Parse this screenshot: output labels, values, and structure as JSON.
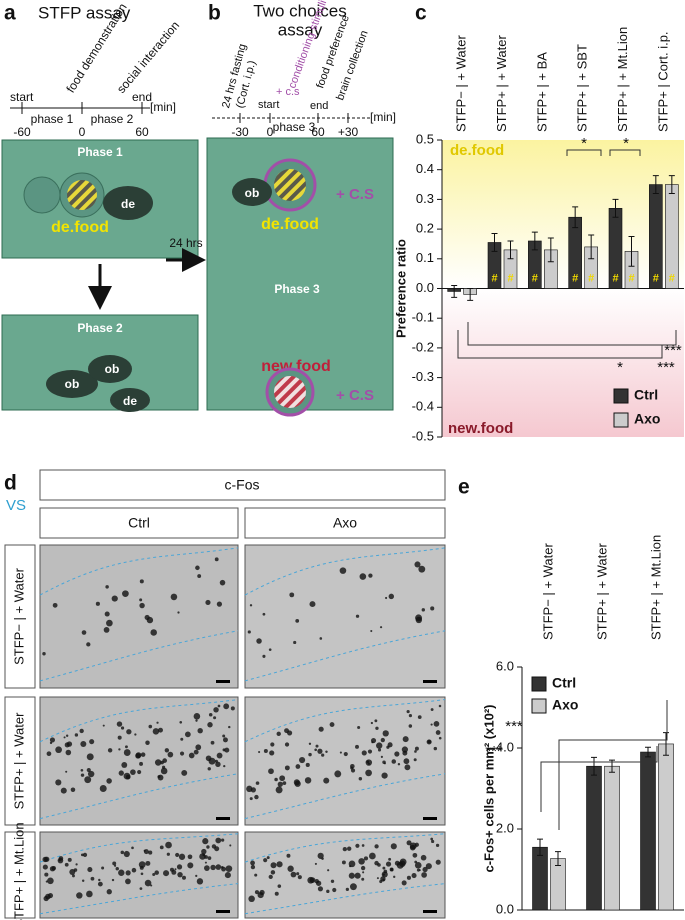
{
  "panel_a": {
    "letter": "a",
    "title": "STFP assay",
    "timeline": {
      "events": [
        "start",
        "food demonstration",
        "social interaction",
        "end"
      ],
      "unit": "[min]",
      "phases": [
        "phase 1",
        "phase 2"
      ],
      "ticks": [
        "-60",
        "0",
        "60"
      ]
    },
    "photo1": {
      "title": "Phase 1",
      "labels": [
        "de",
        "de.food"
      ]
    },
    "photo2": {
      "title": "Phase 2",
      "labels": [
        "ob",
        "ob",
        "de"
      ]
    },
    "gap": "24 hrs"
  },
  "panel_b": {
    "letter": "b",
    "title": [
      "Two choices",
      "assay"
    ],
    "timeline": {
      "events": [
        "24 hrs fasting",
        "(Cort. i.p.)",
        "conditioning stimuli",
        "+ c.s",
        "start",
        "food preference",
        "end",
        "brain collection"
      ],
      "unit": "[min]",
      "phase": "phase 3",
      "ticks": [
        "-30",
        "0",
        "60",
        "+30"
      ]
    },
    "photo": {
      "title": "Phase 3",
      "labels": [
        "ob",
        "de.food",
        "+ C.S",
        "new.food",
        "+ C.S"
      ]
    }
  },
  "panel_d": {
    "letter": "d",
    "region": "VS",
    "stain": "c-Fos",
    "columns": [
      "Ctrl",
      "Axo"
    ],
    "rows": [
      "STFP− | + Water",
      "STFP+ | + Water",
      "STFP+ | + Mt.Lion"
    ]
  },
  "chart_data": [
    {
      "type": "bar",
      "panel": "c",
      "ylabel": "Preference ratio",
      "categories": [
        "STFP− | + Water",
        "STFP+ | + Water",
        "STFP+ | + BA",
        "STFP+ | + SBT",
        "STFP+ | + Mt.Lion",
        "STFP+ | Cort. i.p."
      ],
      "series": [
        {
          "name": "Ctrl",
          "color": "#333333",
          "values": [
            -0.01,
            0.155,
            0.16,
            0.24,
            0.27,
            0.35
          ],
          "errors": [
            0.02,
            0.03,
            0.03,
            0.035,
            0.03,
            0.03
          ],
          "markers": [
            null,
            "#",
            "#",
            "#",
            "#",
            "#"
          ]
        },
        {
          "name": "Axo",
          "color": "#cccccc",
          "values": [
            -0.02,
            0.13,
            0.13,
            0.14,
            0.125,
            0.35
          ],
          "errors": [
            0.02,
            0.03,
            0.04,
            0.04,
            0.05,
            0.03
          ],
          "markers": [
            null,
            "#",
            null,
            "#",
            "#",
            "#"
          ]
        }
      ],
      "ylim": [
        -0.5,
        0.5
      ],
      "yticks": [
        -0.5,
        -0.4,
        -0.3,
        -0.2,
        -0.1,
        {
          "value": 0,
          "label": "0.0"
        },
        0.1,
        0.2,
        0.3,
        0.4,
        0.5
      ],
      "annotations": [
        "de.food",
        "new.food"
      ],
      "significance": [
        "*",
        "*",
        "***",
        "*",
        "***"
      ],
      "legend": "bottom-right"
    },
    {
      "type": "bar",
      "panel": "e",
      "ylabel": "c-Fos+ cells per mm² (x10²)",
      "categories": [
        "STFP− | + Water",
        "STFP+ | + Water",
        "STFP+ | + Mt.Lion"
      ],
      "series": [
        {
          "name": "Ctrl",
          "color": "#333333",
          "values": [
            1.55,
            3.55,
            3.9
          ],
          "errors": [
            0.2,
            0.22,
            0.12
          ]
        },
        {
          "name": "Axo",
          "color": "#cccccc",
          "values": [
            1.27,
            3.55,
            4.1
          ],
          "errors": [
            0.17,
            0.15,
            0.28
          ]
        }
      ],
      "ylim": [
        0,
        6
      ],
      "yticks": [
        {
          "value": 0,
          "label": "0.0"
        },
        {
          "value": 2,
          "label": "2.0"
        },
        {
          "value": 4,
          "label": "4.0"
        },
        {
          "value": 6,
          "label": "6.0"
        }
      ],
      "significance": [
        "***",
        "***"
      ],
      "legend": "top-left"
    }
  ]
}
